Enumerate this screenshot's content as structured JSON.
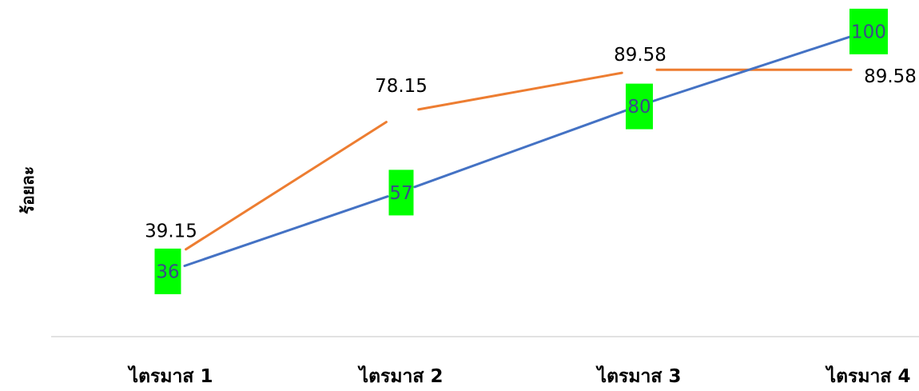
{
  "chart_data": {
    "type": "line",
    "title": "",
    "xlabel": "",
    "ylabel": "ร้อยละ",
    "categories": [
      "ไตรมาส 1",
      "ไตรมาส 2",
      "ไตรมาส 3",
      "ไตรมาส 4"
    ],
    "ylim": [
      0,
      100
    ],
    "grid": false,
    "legend": "none",
    "series": [
      {
        "color": "#4472c4",
        "values": [
          36,
          57,
          80,
          100
        ],
        "data_labels": [
          "36",
          "57",
          "80",
          "100"
        ],
        "label_background": "#00ff00"
      },
      {
        "color": "#ed7d31",
        "values": [
          39.15,
          78.15,
          89.58,
          89.58
        ],
        "data_labels": [
          "39.15",
          "78.15",
          "89.58",
          "89.58"
        ]
      }
    ]
  }
}
